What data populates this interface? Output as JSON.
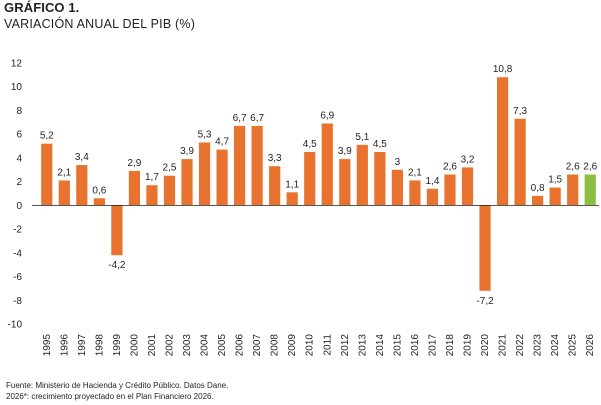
{
  "header": {
    "title": "GRÁFICO 1.",
    "subtitle": "VARIACIÓN ANUAL DEL PIB (%)"
  },
  "footer": {
    "source": "Fuente: Ministerio de Hacienda y Crédito Público. Datos Dane.",
    "note": "2026*: crecimiento proyectado en el Plan Financiero 2026."
  },
  "colors": {
    "bar": "#e8732f",
    "projected": "#8bbf3f",
    "axis": "#231f20"
  },
  "chart_data": {
    "type": "bar",
    "title": "",
    "xlabel": "",
    "ylabel": "",
    "ylim": [
      -10,
      12
    ],
    "yticks": [
      12,
      10,
      8,
      6,
      4,
      2,
      0,
      -2,
      -4,
      -6,
      -8,
      -10
    ],
    "grid": false,
    "categories": [
      "1995",
      "1996",
      "1997",
      "1998",
      "1999",
      "2000",
      "2001",
      "2002",
      "2003",
      "2004",
      "2005",
      "2006",
      "2007",
      "2008",
      "2009",
      "2010",
      "2011",
      "2012",
      "2013",
      "2014",
      "2015",
      "2016",
      "2017",
      "2018",
      "2019",
      "2020",
      "2021",
      "2022",
      "2023",
      "2024",
      "2025",
      "2026"
    ],
    "values": [
      5.2,
      2.1,
      3.4,
      0.6,
      -4.2,
      2.9,
      1.7,
      2.5,
      3.9,
      5.3,
      4.7,
      6.7,
      6.7,
      3.3,
      1.1,
      4.5,
      6.9,
      3.9,
      5.1,
      4.5,
      3.0,
      2.1,
      1.4,
      2.6,
      3.2,
      -7.2,
      10.8,
      7.3,
      0.8,
      1.5,
      2.6,
      2.6
    ],
    "labels": [
      "5,2",
      "2,1",
      "3,4",
      "0,6",
      "-4,2",
      "2,9",
      "1,7",
      "2,5",
      "3,9",
      "5,3",
      "4,7",
      "6,7",
      "6,7",
      "3,3",
      "1,1",
      "4,5",
      "6,9",
      "3,9",
      "5,1",
      "4,5",
      "3",
      "2,1",
      "1,4",
      "2,6",
      "3,2",
      "-7,2",
      "10,8",
      "7,3",
      "0,8",
      "1,5",
      "2,6",
      "2,6"
    ],
    "projected_index": 31
  }
}
